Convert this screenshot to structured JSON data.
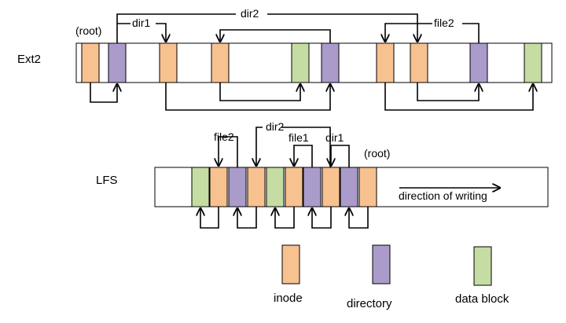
{
  "colors": {
    "inode": "#F8C190",
    "directory": "#AA9BCB",
    "data_block": "#C5DCA3",
    "outline": "#000000",
    "background": "#FFFFFF"
  },
  "ext2": {
    "title": "Ext2",
    "root_label": "(root)",
    "dir1_label": "dir1",
    "dir2_label": "dir2",
    "file2_label": "file2"
  },
  "lfs": {
    "title": "LFS",
    "file2_label": "file2",
    "dir2_label": "dir2",
    "file1_label": "file1",
    "dir1_label": "dir1",
    "root_label": "(root)",
    "direction_label": "direction of writing"
  },
  "legend": {
    "inode": "inode",
    "directory": "directory",
    "data_block": "data block"
  }
}
